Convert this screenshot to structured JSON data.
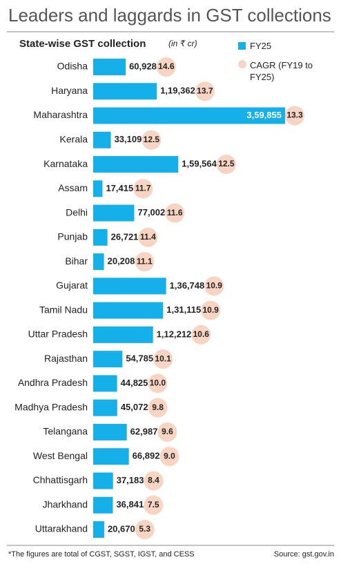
{
  "chart_data": {
    "type": "bar",
    "orientation": "horizontal",
    "title": "Leaders and laggards in GST collections",
    "subtitle": "State-wise GST collection",
    "unit": "(in ₹ cr)",
    "categories": [
      "Odisha",
      "Haryana",
      "Maharashtra",
      "Kerala",
      "Karnataka",
      "Assam",
      "Delhi",
      "Punjab",
      "Bihar",
      "Gujarat",
      "Tamil Nadu",
      "Uttar Pradesh",
      "Rajasthan",
      "Andhra Pradesh",
      "Madhya Pradesh",
      "Telangana",
      "West Bengal",
      "Chhattisgarh",
      "Jharkhand",
      "Uttarakhand"
    ],
    "series": [
      {
        "name": "FY25",
        "color": "#15b0ea",
        "values": [
          60928,
          119362,
          359855,
          33109,
          159564,
          17415,
          77002,
          26721,
          20208,
          136748,
          131115,
          112212,
          54785,
          44825,
          45072,
          62987,
          66892,
          37183,
          36841,
          20670
        ],
        "value_labels": [
          "60,928",
          "1,19,362",
          "3,59,855",
          "33,109",
          "1,59,564",
          "17,415",
          "77,002",
          "26,721",
          "20,208",
          "1,36,748",
          "1,31,115",
          "1,12,212",
          "54,785",
          "44,825",
          "45,072",
          "62,987",
          "66,892",
          "37,183",
          "36,841",
          "20,670"
        ]
      },
      {
        "name": "CAGR (FY19 to FY25)",
        "color": "#f8d4c2",
        "values": [
          14.6,
          13.7,
          13.3,
          12.5,
          12.5,
          11.7,
          11.6,
          11.4,
          11.1,
          10.9,
          10.9,
          10.6,
          10.1,
          10.0,
          9.8,
          9.6,
          9.0,
          8.4,
          7.5,
          5.3
        ],
        "value_labels": [
          "14.6",
          "13.7",
          "13.3",
          "12.5",
          "12.5",
          "11.7",
          "11.6",
          "11.4",
          "11.1",
          "10.9",
          "10.9",
          "10.6",
          "10.1",
          "10.0",
          "9.8",
          "9.6",
          "9.0",
          "8.4",
          "7.5",
          "5.3"
        ]
      }
    ],
    "note": "*The figures are total of CGST, SGST, IGST, and CESS",
    "source": "Source: gst.gov.in"
  }
}
